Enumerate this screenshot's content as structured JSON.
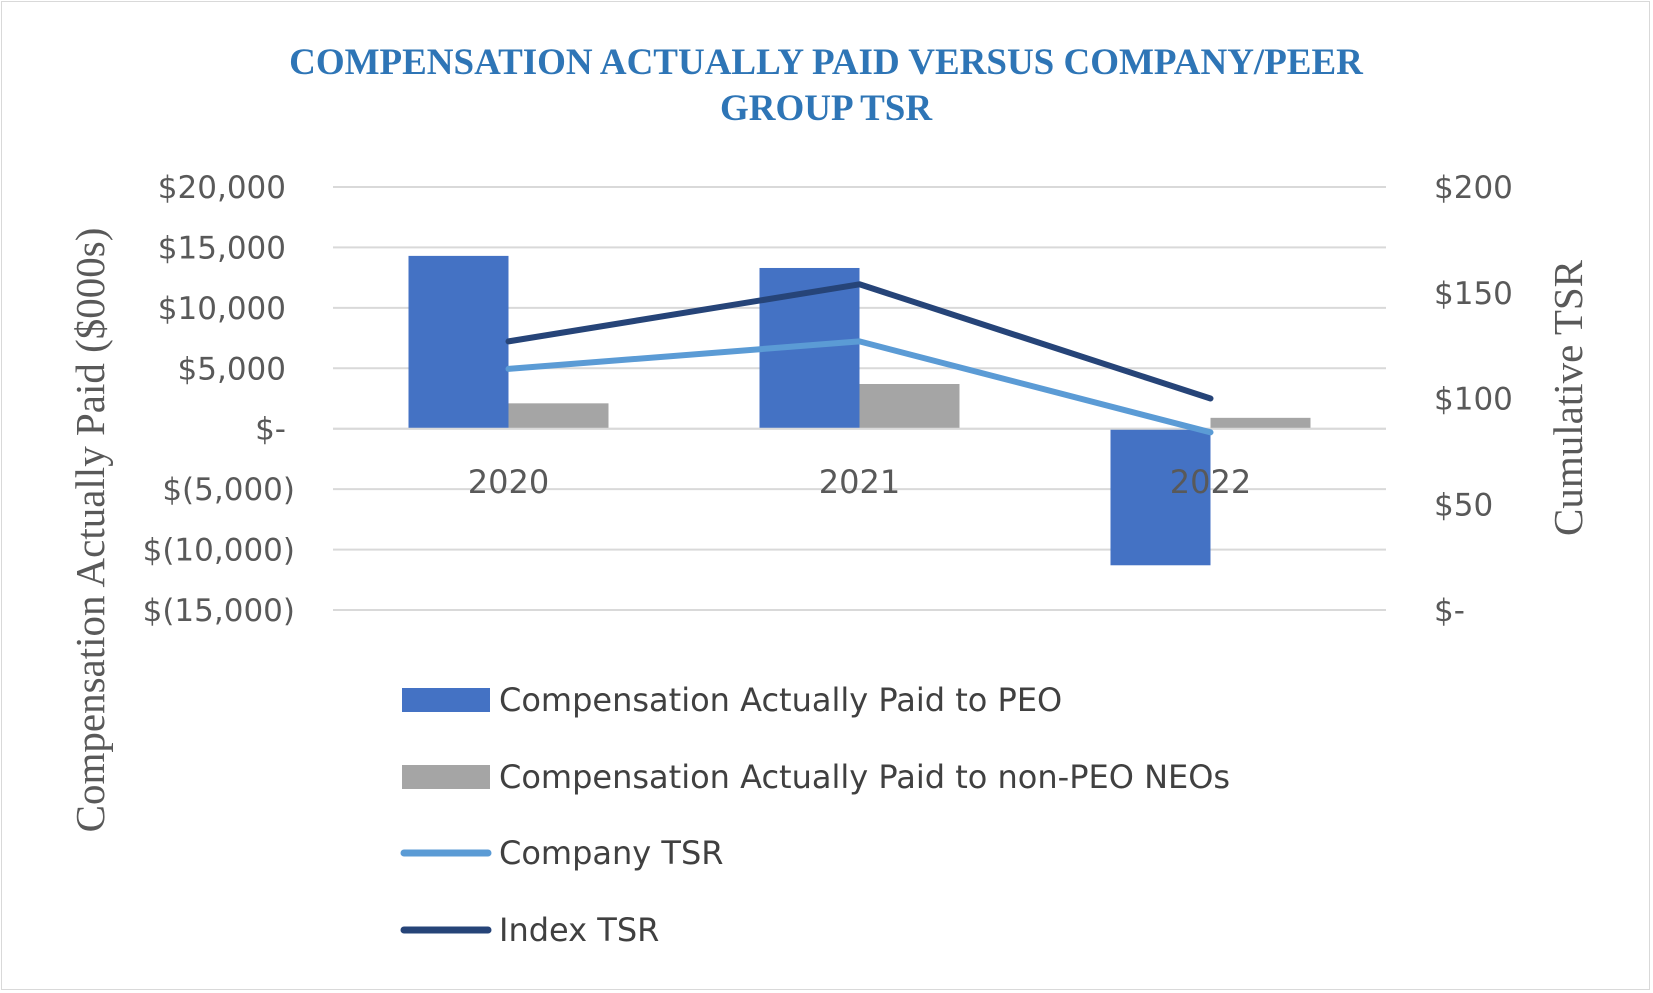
{
  "chart_data": {
    "type": "bar",
    "title_lines": [
      "COMPENSATION ACTUALLY PAID VERSUS COMPANY/PEER",
      "GROUP TSR"
    ],
    "categories": [
      "2020",
      "2021",
      "2022"
    ],
    "y_left": {
      "label": "Compensation Actually Paid ($000s)",
      "range": [
        -15000,
        20000
      ],
      "ticks": [
        20000,
        15000,
        10000,
        5000,
        0,
        -5000,
        -10000,
        -15000
      ],
      "tick_labels": [
        "$20,000",
        "$15,000",
        "$10,000",
        "$5,000",
        "$-",
        "$(5,000)",
        "$(10,000)",
        "$(15,000)"
      ]
    },
    "y_right": {
      "label": "Cumulative TSR",
      "range": [
        0,
        200
      ],
      "ticks": [
        200,
        150,
        100,
        50,
        0
      ],
      "tick_labels": [
        "$200",
        "$150",
        "$100",
        "$50",
        "$-"
      ]
    },
    "grid": true,
    "legend_position": "bottom",
    "series": [
      {
        "name": "Compensation Actually Paid to PEO",
        "kind": "bar",
        "axis": "left",
        "color": "#4472c4",
        "values": [
          14300,
          13300,
          -11300
        ]
      },
      {
        "name": "Compensation Actually Paid to non-PEO NEOs",
        "kind": "bar",
        "axis": "left",
        "color": "#a5a5a5",
        "values": [
          2100,
          3700,
          900
        ]
      },
      {
        "name": "Company TSR",
        "kind": "line",
        "axis": "right",
        "color": "#5b9bd5",
        "values": [
          114,
          127,
          84
        ]
      },
      {
        "name": "Index TSR",
        "kind": "line",
        "axis": "right",
        "color": "#264478",
        "values": [
          127,
          154,
          100
        ]
      }
    ]
  }
}
